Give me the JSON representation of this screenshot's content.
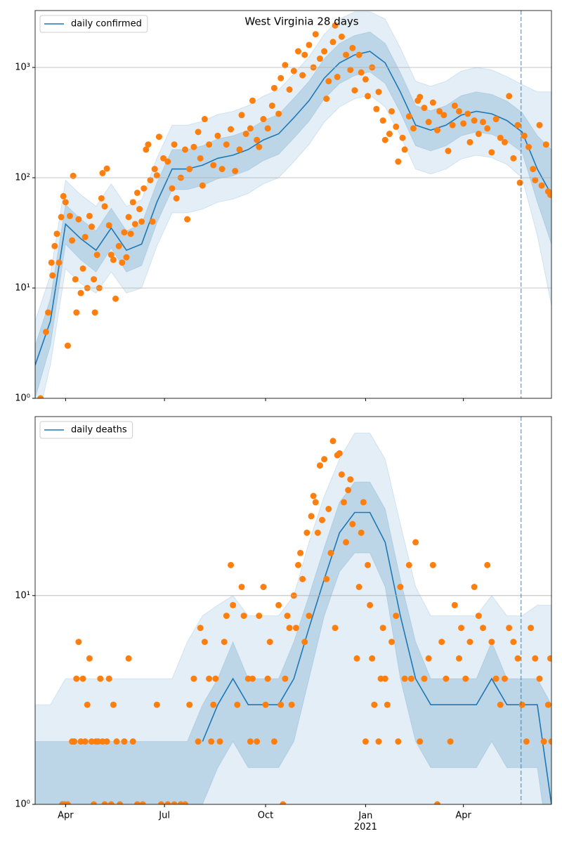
{
  "chart_data": [
    {
      "type": "line",
      "title": "West Virginia 28 days",
      "x": [
        0,
        14,
        28,
        42,
        56,
        70,
        84,
        98,
        112,
        126,
        140,
        154,
        168,
        182,
        196,
        210,
        224,
        238,
        252,
        266,
        280,
        294,
        308,
        322,
        336,
        350,
        364,
        378,
        392,
        406,
        420,
        434,
        448,
        462,
        475
      ],
      "series": [
        {
          "name": "daily confirmed",
          "color": "#1f77b4",
          "values": [
            2,
            5,
            38,
            28,
            22,
            35,
            22,
            25,
            60,
            120,
            120,
            130,
            150,
            160,
            180,
            220,
            250,
            350,
            500,
            800,
            1100,
            1300,
            1400,
            1100,
            600,
            300,
            270,
            300,
            370,
            400,
            380,
            330,
            260,
            120,
            70
          ]
        }
      ],
      "bands": [
        {
          "color": "#1f77b4",
          "opacity": 0.12,
          "lower": [
            0.5,
            2,
            15,
            11,
            9,
            14,
            9,
            10,
            24,
            48,
            48,
            52,
            60,
            64,
            72,
            88,
            100,
            140,
            200,
            320,
            440,
            520,
            560,
            440,
            240,
            120,
            108,
            120,
            148,
            160,
            152,
            132,
            100,
            30,
            7
          ],
          "upper": [
            5,
            13,
            95,
            70,
            55,
            88,
            55,
            63,
            150,
            300,
            300,
            325,
            375,
            400,
            450,
            550,
            625,
            875,
            1250,
            2000,
            2750,
            3200,
            3200,
            2750,
            1500,
            750,
            675,
            750,
            925,
            1000,
            950,
            825,
            700,
            600,
            600
          ]
        },
        {
          "color": "#1f77b4",
          "opacity": 0.2,
          "lower": [
            1,
            3,
            25,
            18,
            14,
            23,
            14,
            16,
            39,
            78,
            78,
            85,
            98,
            104,
            117,
            143,
            163,
            228,
            325,
            520,
            715,
            845,
            910,
            715,
            390,
            195,
            175,
            195,
            240,
            260,
            247,
            215,
            170,
            60,
            25
          ],
          "upper": [
            3,
            8,
            57,
            42,
            33,
            53,
            33,
            38,
            90,
            180,
            180,
            195,
            225,
            240,
            270,
            330,
            375,
            525,
            750,
            1200,
            1650,
            1950,
            2100,
            1650,
            900,
            450,
            405,
            450,
            555,
            600,
            570,
            495,
            390,
            240,
            180
          ]
        }
      ],
      "points": {
        "color": "#ff7f0e",
        "x": [
          5,
          10,
          12,
          15,
          16,
          18,
          20,
          22,
          24,
          26,
          28,
          30,
          32,
          34,
          35,
          37,
          38,
          40,
          42,
          44,
          46,
          48,
          50,
          52,
          54,
          55,
          57,
          59,
          61,
          62,
          64,
          66,
          68,
          70,
          72,
          74,
          77,
          80,
          82,
          84,
          86,
          88,
          90,
          92,
          94,
          96,
          98,
          100,
          102,
          104,
          106,
          108,
          110,
          112,
          114,
          118,
          122,
          126,
          128,
          130,
          134,
          138,
          140,
          142,
          146,
          150,
          152,
          154,
          156,
          160,
          164,
          168,
          172,
          176,
          180,
          184,
          188,
          190,
          194,
          198,
          200,
          204,
          206,
          210,
          214,
          218,
          220,
          224,
          226,
          230,
          234,
          238,
          242,
          246,
          248,
          252,
          256,
          258,
          262,
          266,
          268,
          270,
          274,
          276,
          278,
          282,
          286,
          290,
          292,
          294,
          298,
          300,
          304,
          306,
          310,
          314,
          316,
          320,
          322,
          326,
          328,
          332,
          334,
          338,
          340,
          344,
          348,
          352,
          354,
          358,
          362,
          366,
          370,
          372,
          376,
          380,
          384,
          386,
          390,
          394,
          398,
          400,
          404,
          408,
          412,
          416,
          420,
          424,
          428,
          432,
          436,
          440,
          444,
          446,
          450,
          454,
          458,
          460,
          464,
          466,
          470,
          472,
          474
        ],
        "values": [
          1,
          4,
          6,
          17,
          13,
          24,
          31,
          17,
          44,
          68,
          60,
          3,
          45,
          27,
          104,
          12,
          6,
          42,
          9,
          15,
          29,
          10,
          45,
          36,
          12,
          6,
          20,
          10,
          65,
          110,
          55,
          121,
          37,
          20,
          18,
          8,
          24,
          17,
          32,
          19,
          44,
          31,
          60,
          38,
          73,
          52,
          40,
          80,
          180,
          200,
          95,
          40,
          120,
          105,
          235,
          150,
          140,
          80,
          200,
          65,
          100,
          180,
          42,
          120,
          190,
          260,
          150,
          85,
          340,
          200,
          130,
          240,
          120,
          200,
          275,
          115,
          180,
          370,
          250,
          280,
          500,
          220,
          190,
          340,
          280,
          450,
          650,
          380,
          800,
          1050,
          630,
          930,
          1400,
          850,
          1300,
          1600,
          1000,
          2000,
          1200,
          1400,
          520,
          750,
          1700,
          2400,
          820,
          1900,
          1300,
          950,
          1500,
          620,
          1300,
          900,
          780,
          550,
          1000,
          420,
          600,
          330,
          220,
          250,
          400,
          290,
          140,
          230,
          180,
          360,
          280,
          500,
          540,
          430,
          320,
          480,
          270,
          400,
          370,
          175,
          300,
          450,
          400,
          310,
          380,
          210,
          330,
          250,
          320,
          280,
          170,
          340,
          230,
          210,
          550,
          150,
          300,
          90,
          240,
          190,
          120,
          95,
          300,
          85,
          200,
          75,
          70
        ]
      },
      "vline": 447,
      "log_y": true,
      "grid": true,
      "legend": "upper left",
      "xlim": [
        0,
        475
      ],
      "ylim": [
        1,
        3280
      ],
      "yticks": [
        {
          "value": 1,
          "label": "10⁰"
        },
        {
          "value": 10,
          "label": "10¹"
        },
        {
          "value": 100,
          "label": "10²"
        },
        {
          "value": 1000,
          "label": "10³"
        }
      ]
    },
    {
      "type": "line",
      "x": [
        0,
        14,
        28,
        42,
        56,
        70,
        84,
        98,
        112,
        126,
        140,
        154,
        168,
        182,
        196,
        210,
        224,
        238,
        252,
        266,
        280,
        294,
        308,
        322,
        336,
        350,
        364,
        378,
        392,
        406,
        420,
        434,
        448,
        462,
        475
      ],
      "series": [
        {
          "name": "daily deaths",
          "color": "#1f77b4",
          "values": [
            null,
            null,
            null,
            null,
            null,
            null,
            null,
            null,
            null,
            null,
            null,
            2,
            3,
            4,
            3,
            3,
            3,
            4,
            7,
            12,
            20,
            25,
            25,
            18,
            8,
            4,
            3,
            3,
            3,
            3,
            4,
            3,
            3,
            3,
            1
          ]
        }
      ],
      "bands": [
        {
          "color": "#1f77b4",
          "opacity": 0.12,
          "lower": [
            0.5,
            0.5,
            0.5,
            0.5,
            0.5,
            0.5,
            0.5,
            0.5,
            0.5,
            0.5,
            0.5,
            0.5,
            0.5,
            0.5,
            0.5,
            0.5,
            0.5,
            0.5,
            0.5,
            0.5,
            0.5,
            0.5,
            0.5,
            0.5,
            0.5,
            0.5,
            0.5,
            0.5,
            0.5,
            0.5,
            0.5,
            0.5,
            0.5,
            0.5,
            0.5
          ],
          "upper": [
            3,
            3,
            4,
            4,
            4,
            4,
            4,
            4,
            4,
            4,
            6,
            8,
            9,
            10,
            8,
            8,
            8,
            10,
            18,
            30,
            45,
            60,
            60,
            45,
            22,
            11,
            8,
            8,
            8,
            8,
            10,
            8,
            8,
            9,
            9
          ]
        },
        {
          "color": "#1f77b4",
          "opacity": 0.2,
          "lower": [
            0.5,
            0.5,
            0.5,
            0.5,
            0.5,
            0.5,
            0.5,
            0.5,
            0.5,
            0.5,
            0.5,
            1,
            1.5,
            2,
            1.5,
            1.5,
            1.5,
            2,
            4,
            8,
            13,
            16,
            16,
            11,
            4,
            2,
            1.5,
            1.5,
            1.5,
            1.5,
            2,
            1.5,
            1.5,
            1.5,
            0.5
          ],
          "upper": [
            2,
            2,
            2,
            2,
            2,
            2,
            2,
            2,
            2,
            2,
            2,
            3,
            4,
            6,
            4,
            4,
            4,
            6,
            10,
            17,
            28,
            35,
            35,
            26,
            12,
            6,
            4,
            4,
            4,
            4,
            6,
            4,
            4,
            4,
            3
          ]
        }
      ],
      "points": {
        "color": "#ff7f0e",
        "x": [
          25,
          27,
          30,
          34,
          36,
          38,
          40,
          42,
          44,
          46,
          48,
          50,
          52,
          54,
          56,
          58,
          60,
          62,
          64,
          66,
          68,
          70,
          72,
          75,
          78,
          82,
          86,
          90,
          94,
          99,
          112,
          116,
          122,
          128,
          134,
          138,
          142,
          146,
          150,
          152,
          156,
          160,
          162,
          164,
          166,
          170,
          174,
          176,
          180,
          182,
          186,
          190,
          192,
          196,
          198,
          200,
          204,
          206,
          210,
          212,
          214,
          216,
          220,
          224,
          226,
          228,
          230,
          232,
          234,
          236,
          238,
          240,
          242,
          244,
          246,
          248,
          250,
          252,
          254,
          256,
          258,
          260,
          262,
          264,
          266,
          268,
          270,
          272,
          274,
          276,
          278,
          280,
          282,
          284,
          286,
          288,
          290,
          292,
          296,
          298,
          300,
          302,
          304,
          306,
          308,
          310,
          312,
          316,
          318,
          320,
          322,
          324,
          328,
          332,
          334,
          336,
          340,
          344,
          346,
          350,
          354,
          358,
          362,
          366,
          370,
          374,
          378,
          382,
          386,
          390,
          392,
          396,
          400,
          404,
          408,
          412,
          416,
          420,
          424,
          428,
          432,
          436,
          440,
          444,
          448,
          452,
          456,
          460,
          464,
          468,
          472,
          474,
          475
        ],
        "values": [
          1,
          1,
          1,
          2,
          2,
          4,
          6,
          2,
          4,
          2,
          3,
          5,
          2,
          1,
          2,
          2,
          4,
          2,
          1,
          2,
          4,
          1,
          3,
          2,
          1,
          2,
          5,
          2,
          1,
          1,
          3,
          1,
          1,
          1,
          1,
          1,
          3,
          4,
          2,
          7,
          6,
          4,
          2,
          3,
          4,
          2,
          6,
          8,
          14,
          9,
          3,
          11,
          8,
          4,
          2,
          4,
          2,
          8,
          11,
          3,
          4,
          6,
          2,
          9,
          3,
          1,
          4,
          8,
          7,
          3,
          10,
          7,
          14,
          16,
          12,
          6,
          20,
          8,
          24,
          30,
          28,
          20,
          42,
          23,
          45,
          12,
          26,
          16,
          55,
          7,
          47,
          48,
          38,
          28,
          18,
          32,
          36,
          22,
          5,
          11,
          20,
          28,
          2,
          14,
          9,
          5,
          3,
          2,
          4,
          7,
          4,
          3,
          6,
          8,
          2,
          11,
          4,
          14,
          4,
          18,
          2,
          4,
          5,
          14,
          1,
          6,
          4,
          2,
          9,
          5,
          7,
          4,
          6,
          11,
          8,
          7,
          14,
          6,
          4,
          3,
          4,
          7,
          6,
          5,
          3,
          2,
          7,
          5,
          4,
          2,
          3,
          5,
          2
        ]
      },
      "vline": 447,
      "log_y": true,
      "grid": true,
      "legend": "upper left",
      "xlim": [
        0,
        475
      ],
      "ylim": [
        1,
        72
      ],
      "xticks": [
        {
          "value": 28,
          "label": "Apr"
        },
        {
          "value": 119,
          "label": "Jul"
        },
        {
          "value": 212,
          "label": "Oct"
        },
        {
          "value": 304,
          "label": "Jan\n2021"
        },
        {
          "value": 394,
          "label": "Apr"
        }
      ],
      "yticks": [
        {
          "value": 1,
          "label": "10⁰"
        },
        {
          "value": 10,
          "label": "10¹"
        }
      ]
    }
  ]
}
